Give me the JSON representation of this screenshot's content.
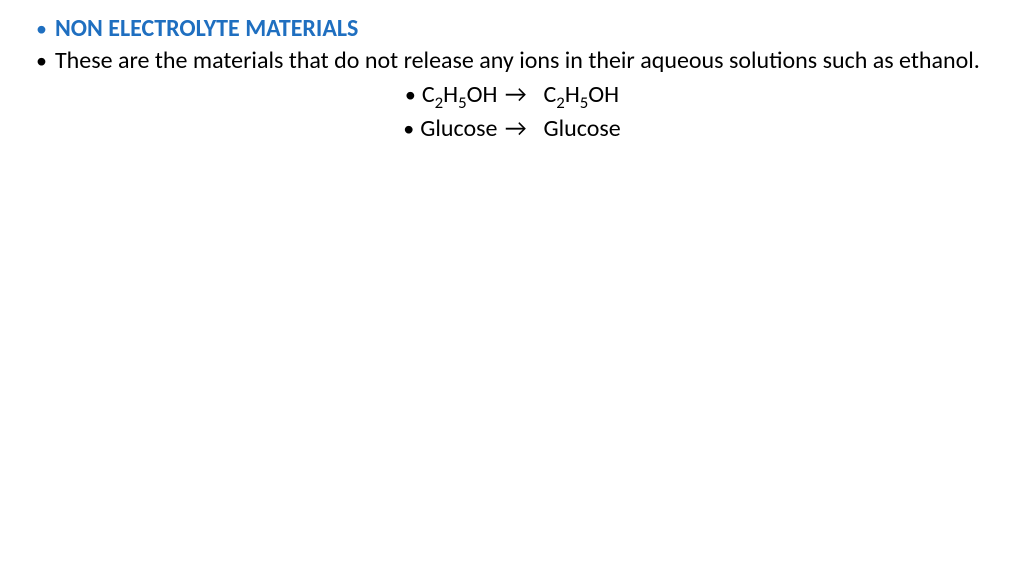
{
  "heading": "NON ELECTROLYTE MATERIALS",
  "description": "These are the materials that do not release any ions in their aqueous solutions such as ethanol.",
  "equations": [
    {
      "leftHtml": "C<sub>2</sub>H<sub>5</sub>OH",
      "arrow": "→",
      "rightHtml": "C<sub>2</sub>H<sub>5</sub>OH"
    },
    {
      "leftHtml": "Glucose",
      "arrow": "→",
      "rightHtml": "Glucose"
    }
  ],
  "colors": {
    "heading": "#1f6fc0",
    "body": "#000000",
    "background": "#ffffff"
  },
  "typography": {
    "heading_fontsize": 24,
    "body_fontsize": 24,
    "font_family": "Calibri"
  }
}
